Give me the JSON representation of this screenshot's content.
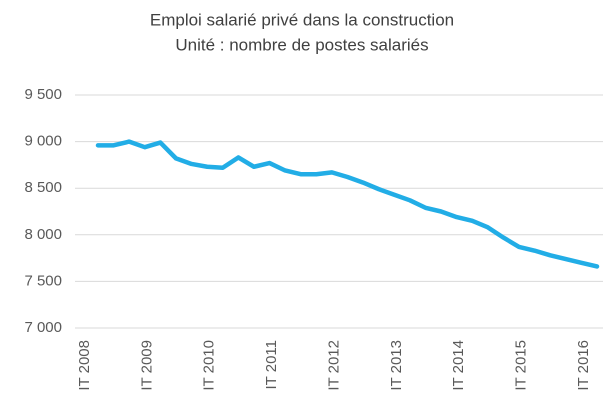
{
  "chart_data": {
    "type": "line",
    "title": "Emploi salarié privé dans la construction",
    "subtitle": "Unité : nombre de postes salariés",
    "categories": [
      "IT 2008",
      null,
      null,
      null,
      "IT 2009",
      null,
      null,
      null,
      "IT 2010",
      null,
      null,
      null,
      "IT 2011",
      null,
      null,
      null,
      "IT 2012",
      null,
      null,
      null,
      "IT 2013",
      null,
      null,
      null,
      "IT 2014",
      null,
      null,
      null,
      "IT 2015",
      null,
      null,
      null,
      "IT 2016"
    ],
    "series": [
      {
        "color": "#22ade6",
        "values": [
          8960,
          8960,
          9000,
          8940,
          8990,
          8820,
          8760,
          8730,
          8720,
          8830,
          8730,
          8770,
          8690,
          8650,
          8650,
          8670,
          8620,
          8560,
          8490,
          8430,
          8370,
          8290,
          8250,
          8190,
          8150,
          8080,
          7970,
          7870,
          7830,
          7780,
          7740,
          7700,
          7660
        ]
      }
    ],
    "ylim": [
      7000,
      9500
    ],
    "yticks": [
      {
        "value": 7000,
        "label": "7 000"
      },
      {
        "value": 7500,
        "label": "7 500"
      },
      {
        "value": 8000,
        "label": "8 000"
      },
      {
        "value": 8500,
        "label": "8 500"
      },
      {
        "value": 9000,
        "label": "9 000"
      },
      {
        "value": 9500,
        "label": "9 500"
      }
    ],
    "grid": true
  }
}
